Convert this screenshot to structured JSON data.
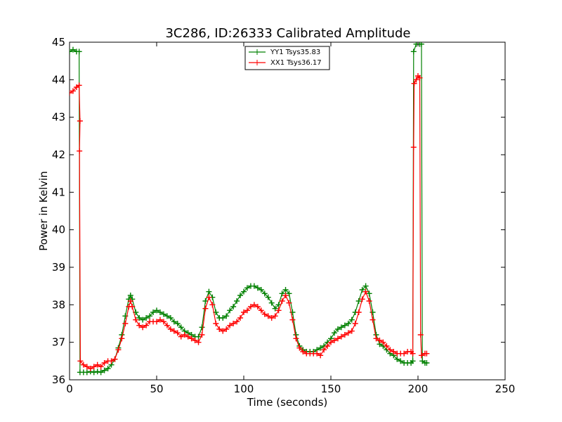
{
  "chart_data": {
    "type": "line",
    "title": "3C286, ID:26333 Calibrated Amplitude",
    "xlabel": "Time (seconds)",
    "ylabel": "Power in Kelvin",
    "xlim": [
      0,
      250
    ],
    "ylim": [
      36,
      45
    ],
    "x_ticks": [
      "0",
      "50",
      "100",
      "150",
      "200",
      "250"
    ],
    "y_ticks": [
      "36",
      "37",
      "38",
      "39",
      "40",
      "41",
      "42",
      "43",
      "44",
      "45"
    ],
    "grid": false,
    "legend": "top-center",
    "series": [
      {
        "name": "YY1 Tsys35.83",
        "color": "#008000",
        "points": [
          [
            0,
            44.75
          ],
          [
            2,
            44.8
          ],
          [
            4,
            44.75
          ],
          [
            5.5,
            44.75
          ],
          [
            6,
            36.2
          ],
          [
            8,
            36.2
          ],
          [
            10,
            36.2
          ],
          [
            12,
            36.22
          ],
          [
            14,
            36.2
          ],
          [
            16,
            36.22
          ],
          [
            18,
            36.2
          ],
          [
            20,
            36.25
          ],
          [
            22,
            36.3
          ],
          [
            24,
            36.4
          ],
          [
            26,
            36.55
          ],
          [
            28,
            36.85
          ],
          [
            30,
            37.2
          ],
          [
            32,
            37.7
          ],
          [
            34,
            38.15
          ],
          [
            35,
            38.25
          ],
          [
            36,
            38.15
          ],
          [
            38,
            37.8
          ],
          [
            40,
            37.65
          ],
          [
            42,
            37.6
          ],
          [
            44,
            37.65
          ],
          [
            46,
            37.7
          ],
          [
            48,
            37.8
          ],
          [
            50,
            37.85
          ],
          [
            52,
            37.8
          ],
          [
            54,
            37.75
          ],
          [
            56,
            37.7
          ],
          [
            58,
            37.65
          ],
          [
            60,
            37.55
          ],
          [
            62,
            37.5
          ],
          [
            64,
            37.4
          ],
          [
            66,
            37.3
          ],
          [
            68,
            37.25
          ],
          [
            70,
            37.2
          ],
          [
            72,
            37.15
          ],
          [
            74,
            37.15
          ],
          [
            76,
            37.4
          ],
          [
            78,
            38.1
          ],
          [
            80,
            38.35
          ],
          [
            82,
            38.2
          ],
          [
            84,
            37.8
          ],
          [
            86,
            37.65
          ],
          [
            88,
            37.65
          ],
          [
            90,
            37.7
          ],
          [
            92,
            37.85
          ],
          [
            94,
            37.95
          ],
          [
            96,
            38.1
          ],
          [
            98,
            38.25
          ],
          [
            100,
            38.35
          ],
          [
            102,
            38.45
          ],
          [
            104,
            38.5
          ],
          [
            106,
            38.5
          ],
          [
            108,
            38.45
          ],
          [
            110,
            38.4
          ],
          [
            112,
            38.3
          ],
          [
            114,
            38.2
          ],
          [
            116,
            38.05
          ],
          [
            118,
            37.9
          ],
          [
            120,
            38.0
          ],
          [
            122,
            38.3
          ],
          [
            124,
            38.4
          ],
          [
            126,
            38.3
          ],
          [
            128,
            37.8
          ],
          [
            130,
            37.2
          ],
          [
            132,
            36.9
          ],
          [
            134,
            36.8
          ],
          [
            136,
            36.75
          ],
          [
            138,
            36.75
          ],
          [
            140,
            36.75
          ],
          [
            142,
            36.8
          ],
          [
            144,
            36.85
          ],
          [
            146,
            36.9
          ],
          [
            148,
            37.0
          ],
          [
            150,
            37.1
          ],
          [
            152,
            37.25
          ],
          [
            154,
            37.35
          ],
          [
            156,
            37.4
          ],
          [
            158,
            37.45
          ],
          [
            160,
            37.5
          ],
          [
            162,
            37.6
          ],
          [
            164,
            37.8
          ],
          [
            166,
            38.1
          ],
          [
            168,
            38.4
          ],
          [
            170,
            38.5
          ],
          [
            172,
            38.3
          ],
          [
            174,
            37.8
          ],
          [
            176,
            37.2
          ],
          [
            178,
            36.95
          ],
          [
            180,
            36.9
          ],
          [
            182,
            36.8
          ],
          [
            184,
            36.7
          ],
          [
            186,
            36.65
          ],
          [
            188,
            36.55
          ],
          [
            190,
            36.5
          ],
          [
            192,
            36.45
          ],
          [
            194,
            36.45
          ],
          [
            196,
            36.45
          ],
          [
            197,
            36.5
          ],
          [
            197.5,
            44.75
          ],
          [
            199,
            44.95
          ],
          [
            201,
            44.95
          ],
          [
            202,
            44.95
          ],
          [
            202.5,
            36.5
          ],
          [
            204,
            36.45
          ],
          [
            205,
            36.45
          ]
        ]
      },
      {
        "name": "XX1 Tsys36.17",
        "color": "#ff0000",
        "points": [
          [
            0,
            43.65
          ],
          [
            2,
            43.7
          ],
          [
            4,
            43.8
          ],
          [
            5.5,
            43.85
          ],
          [
            6,
            42.9
          ],
          [
            5.7,
            42.1
          ],
          [
            6.2,
            36.5
          ],
          [
            8,
            36.4
          ],
          [
            10,
            36.35
          ],
          [
            12,
            36.3
          ],
          [
            14,
            36.35
          ],
          [
            16,
            36.4
          ],
          [
            18,
            36.35
          ],
          [
            20,
            36.45
          ],
          [
            22,
            36.5
          ],
          [
            24,
            36.5
          ],
          [
            26,
            36.55
          ],
          [
            28,
            36.8
          ],
          [
            30,
            37.1
          ],
          [
            32,
            37.5
          ],
          [
            34,
            37.95
          ],
          [
            35,
            38.1
          ],
          [
            36,
            37.95
          ],
          [
            38,
            37.6
          ],
          [
            40,
            37.45
          ],
          [
            42,
            37.4
          ],
          [
            44,
            37.45
          ],
          [
            46,
            37.55
          ],
          [
            48,
            37.55
          ],
          [
            50,
            37.55
          ],
          [
            52,
            37.6
          ],
          [
            54,
            37.55
          ],
          [
            56,
            37.45
          ],
          [
            58,
            37.35
          ],
          [
            60,
            37.3
          ],
          [
            62,
            37.25
          ],
          [
            64,
            37.15
          ],
          [
            66,
            37.2
          ],
          [
            68,
            37.15
          ],
          [
            70,
            37.1
          ],
          [
            72,
            37.05
          ],
          [
            74,
            37.0
          ],
          [
            76,
            37.2
          ],
          [
            78,
            37.9
          ],
          [
            80,
            38.2
          ],
          [
            82,
            38.0
          ],
          [
            84,
            37.5
          ],
          [
            86,
            37.35
          ],
          [
            88,
            37.3
          ],
          [
            90,
            37.35
          ],
          [
            92,
            37.45
          ],
          [
            94,
            37.5
          ],
          [
            96,
            37.55
          ],
          [
            98,
            37.65
          ],
          [
            100,
            37.8
          ],
          [
            102,
            37.85
          ],
          [
            104,
            37.95
          ],
          [
            106,
            38.0
          ],
          [
            108,
            37.95
          ],
          [
            110,
            37.85
          ],
          [
            112,
            37.75
          ],
          [
            114,
            37.7
          ],
          [
            116,
            37.65
          ],
          [
            118,
            37.7
          ],
          [
            120,
            37.85
          ],
          [
            122,
            38.1
          ],
          [
            124,
            38.25
          ],
          [
            126,
            38.05
          ],
          [
            128,
            37.6
          ],
          [
            130,
            37.1
          ],
          [
            132,
            36.85
          ],
          [
            134,
            36.75
          ],
          [
            136,
            36.7
          ],
          [
            138,
            36.7
          ],
          [
            140,
            36.7
          ],
          [
            142,
            36.7
          ],
          [
            144,
            36.65
          ],
          [
            146,
            36.8
          ],
          [
            148,
            36.9
          ],
          [
            150,
            37.0
          ],
          [
            152,
            37.05
          ],
          [
            154,
            37.1
          ],
          [
            156,
            37.15
          ],
          [
            158,
            37.2
          ],
          [
            160,
            37.25
          ],
          [
            162,
            37.3
          ],
          [
            164,
            37.5
          ],
          [
            166,
            37.8
          ],
          [
            168,
            38.15
          ],
          [
            170,
            38.35
          ],
          [
            172,
            38.1
          ],
          [
            174,
            37.6
          ],
          [
            176,
            37.1
          ],
          [
            178,
            37.05
          ],
          [
            180,
            37.0
          ],
          [
            182,
            36.9
          ],
          [
            184,
            36.8
          ],
          [
            186,
            36.75
          ],
          [
            188,
            36.7
          ],
          [
            190,
            36.7
          ],
          [
            192,
            36.7
          ],
          [
            194,
            36.75
          ],
          [
            196,
            36.75
          ],
          [
            197,
            36.7
          ],
          [
            197.5,
            42.2
          ],
          [
            197.8,
            43.9
          ],
          [
            199,
            44.0
          ],
          [
            200,
            44.1
          ],
          [
            201,
            44.05
          ],
          [
            201.5,
            37.2
          ],
          [
            202,
            36.65
          ],
          [
            204,
            36.7
          ],
          [
            205,
            36.7
          ]
        ]
      }
    ]
  }
}
